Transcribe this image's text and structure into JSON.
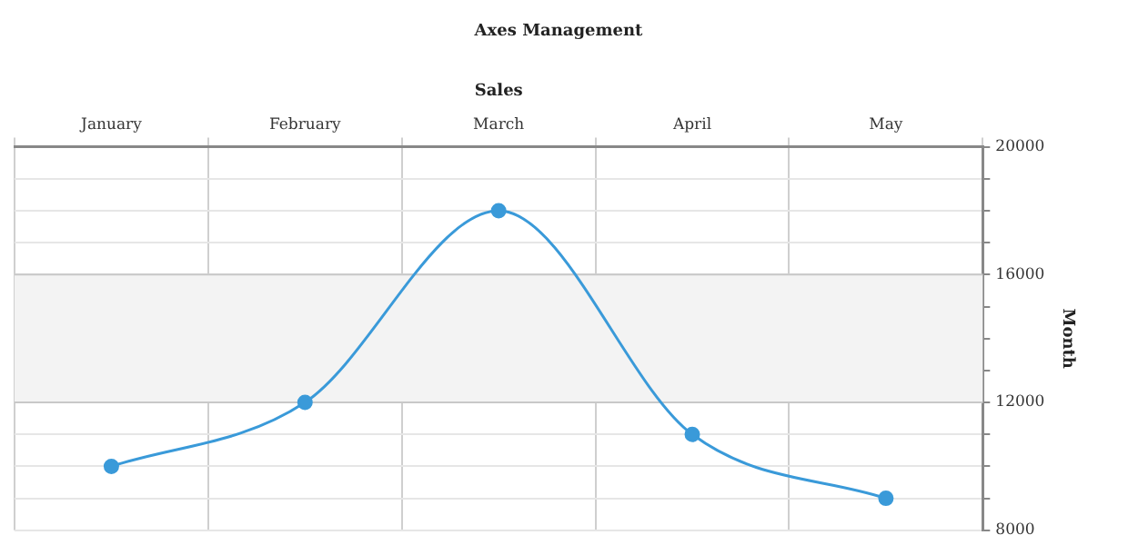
{
  "chart_data": {
    "type": "line",
    "title": "Axes Management",
    "xlabel": "Sales",
    "ylabel": "Month",
    "categories": [
      "January",
      "February",
      "March",
      "April",
      "May"
    ],
    "series": [
      {
        "color": "#3a9ad9",
        "values": [
          10000,
          12000,
          18000,
          11000,
          9000
        ]
      }
    ],
    "ylim": [
      8000,
      20000
    ],
    "yticks": [
      8000,
      {
        "value": 9000,
        "label": null
      },
      {
        "value": 10000,
        "label": null
      },
      {
        "value": 11000,
        "label": null
      },
      12000,
      {
        "value": 13000,
        "label": null
      },
      {
        "value": 14000,
        "label": null
      },
      {
        "value": 15000,
        "label": null
      },
      16000,
      {
        "value": 17000,
        "label": null
      },
      {
        "value": 18000,
        "label": null
      },
      {
        "value": 19000,
        "label": null
      },
      20000
    ],
    "bands": [
      {
        "axis": "y",
        "from": 12000,
        "to": 16000,
        "color": "#f3f3f3"
      }
    ],
    "grid": true,
    "legend": false,
    "marker": "circle",
    "line_style": "solid"
  }
}
